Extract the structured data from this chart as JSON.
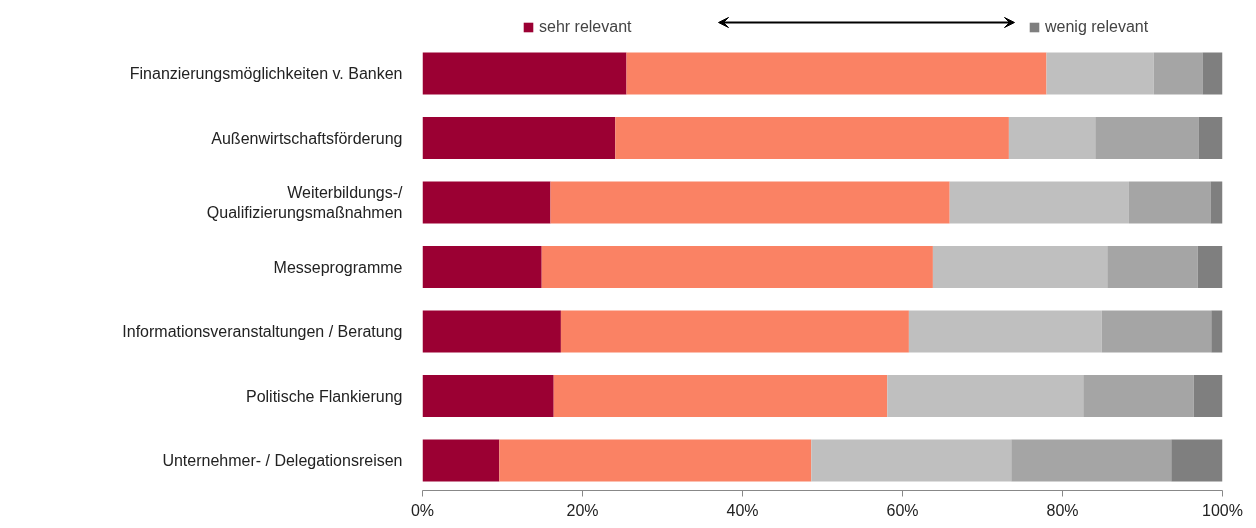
{
  "chart_data": {
    "type": "bar",
    "orientation": "horizontal",
    "stacked": true,
    "categories": [
      "Finanzierungsmöglichkeiten v. Banken",
      "Außenwirtschaftsförderung",
      "Weiterbildungs-/\nQualifizierungsmaßnahmen",
      "Messeprogramme",
      "Informationsveranstaltungen / Beratung",
      "Politische Flankierung",
      "Unternehmer- / Delegationsreisen"
    ],
    "series": [
      {
        "name": "sehr relevant",
        "color": "#9b0033",
        "values": [
          25.5,
          24.1,
          16,
          14.9,
          17.3,
          16.4,
          9.6
        ]
      },
      {
        "color": "#fa8264",
        "values": [
          52.5,
          49.2,
          49.9,
          48.9,
          43.5,
          41.7,
          39
        ]
      },
      {
        "color": "#bfbfbf",
        "values": [
          13.4,
          10.8,
          22.4,
          21.8,
          24.1,
          24.5,
          25
        ]
      },
      {
        "color": "#a5a5a5",
        "values": [
          6.1,
          12.9,
          10.2,
          11.3,
          13.7,
          13.8,
          20
        ]
      },
      {
        "name": "wenig relevant",
        "color": "#7f7f7f",
        "values": [
          2.5,
          3,
          1.5,
          3.1,
          1.4,
          3.6,
          6.4
        ]
      }
    ],
    "xlim": [
      0,
      100
    ],
    "xticks": [
      {
        "value": 0,
        "label": "0%"
      },
      {
        "value": 20,
        "label": "20%"
      },
      {
        "value": 40,
        "label": "40%"
      },
      {
        "value": 60,
        "label": "60%"
      },
      {
        "value": 80,
        "label": "80%"
      },
      {
        "value": 100,
        "label": "100%"
      }
    ],
    "grid": false,
    "legend": "top"
  }
}
